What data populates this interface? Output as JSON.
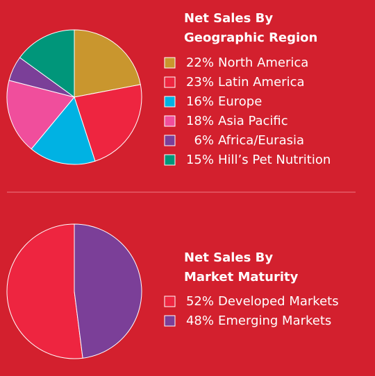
{
  "chart_data": [
    {
      "type": "pie",
      "title": [
        "Net Sales By",
        "Geographic Region"
      ],
      "categories": [
        "North America",
        "Latin America",
        "Europe",
        "Asia Pacific",
        "Africa/Eurasia",
        "Hill’s Pet Nutrition"
      ],
      "values": [
        22,
        23,
        16,
        18,
        6,
        15
      ],
      "value_labels": [
        "22%",
        "23%",
        "16%",
        "18%",
        "6%",
        "15%"
      ],
      "colors": [
        "#c9962e",
        "#ee2540",
        "#00b2e3",
        "#f04e9c",
        "#7b3f98",
        "#00967a"
      ],
      "direction": "clockwise"
    },
    {
      "type": "pie",
      "title": [
        "Net Sales By",
        "Market Maturity"
      ],
      "categories": [
        "Developed Markets",
        "Emerging Markets"
      ],
      "values": [
        52,
        48
      ],
      "value_labels": [
        "52%",
        "48%"
      ],
      "colors": [
        "#ee2540",
        "#7b3f98"
      ],
      "direction": "counterclockwise"
    }
  ]
}
